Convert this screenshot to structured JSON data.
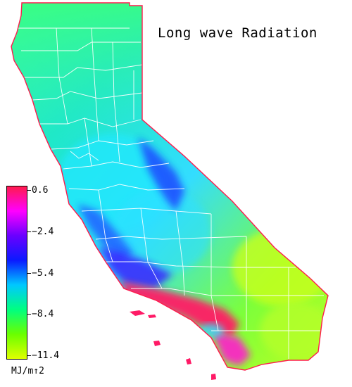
{
  "title": "Long wave Radiation",
  "legend": {
    "units": "MJ/m↑2",
    "ticks": [
      {
        "value": 0.6,
        "label": "0.6"
      },
      {
        "value": -2.4,
        "label": "−2.4"
      },
      {
        "value": -5.4,
        "label": "−5.4"
      },
      {
        "value": -8.4,
        "label": "−8.4"
      },
      {
        "value": -11.4,
        "label": "−11.4"
      }
    ],
    "range": [
      -11.4,
      0.6
    ],
    "colors": [
      "#ff1a4d",
      "#ff00ff",
      "#6a00ff",
      "#0a1aff",
      "#00c8ff",
      "#00ff80",
      "#6aff00",
      "#dfff00"
    ]
  },
  "map": {
    "region": "California",
    "background": "#ffffff",
    "county_line_color": "#ffffff",
    "coast_edge_color": "#ff1a4d"
  }
}
